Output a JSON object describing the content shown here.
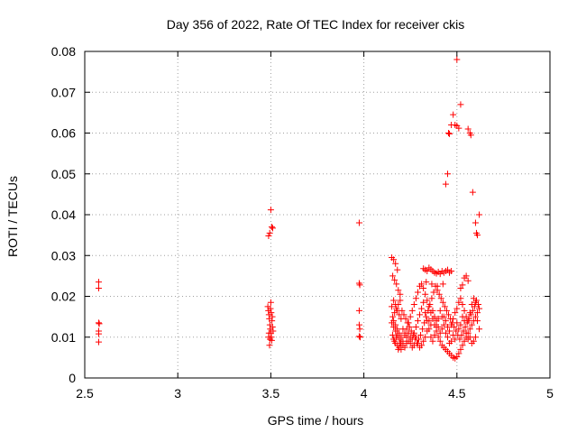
{
  "chart_data": {
    "type": "scatter",
    "title": "Day 356 of 2022, Rate Of TEC Index for receiver ckis",
    "xlabel": "GPS time / hours",
    "ylabel": "ROTI / TECUs",
    "xlim": [
      2.5,
      5
    ],
    "ylim": [
      0,
      0.08
    ],
    "x_ticks": [
      "2.5",
      "3",
      "3.5",
      "4",
      "4.5",
      "5"
    ],
    "y_ticks": [
      "0",
      "0.01",
      "0.02",
      "0.03",
      "0.04",
      "0.05",
      "0.06",
      "0.07",
      "0.08"
    ],
    "grid": true,
    "legend": "none",
    "marker": "plus",
    "marker_color": "#ff0000",
    "points": [
      [
        2.575,
        0.0235
      ],
      [
        2.575,
        0.022
      ],
      [
        2.575,
        0.0135
      ],
      [
        2.578,
        0.0133
      ],
      [
        2.575,
        0.0115
      ],
      [
        2.575,
        0.0108
      ],
      [
        2.575,
        0.0088
      ],
      [
        3.488,
        0.0348
      ],
      [
        3.494,
        0.0355
      ],
      [
        3.5,
        0.0412
      ],
      [
        3.505,
        0.037
      ],
      [
        3.51,
        0.0367
      ],
      [
        3.484,
        0.0175
      ],
      [
        3.487,
        0.0165
      ],
      [
        3.49,
        0.0155
      ],
      [
        3.492,
        0.0145
      ],
      [
        3.495,
        0.013
      ],
      [
        3.497,
        0.012
      ],
      [
        3.5,
        0.011
      ],
      [
        3.503,
        0.01
      ],
      [
        3.505,
        0.0092
      ],
      [
        3.493,
        0.008
      ],
      [
        3.488,
        0.01
      ],
      [
        3.498,
        0.017
      ],
      [
        3.502,
        0.016
      ],
      [
        3.506,
        0.014
      ],
      [
        3.509,
        0.0125
      ],
      [
        3.512,
        0.0115
      ],
      [
        3.5,
        0.0185
      ],
      [
        3.49,
        0.011
      ],
      [
        3.496,
        0.0095
      ],
      [
        3.508,
        0.015
      ],
      [
        3.975,
        0.038
      ],
      [
        3.975,
        0.0232
      ],
      [
        3.978,
        0.0228
      ],
      [
        3.975,
        0.0165
      ],
      [
        3.975,
        0.013
      ],
      [
        3.978,
        0.012
      ],
      [
        3.975,
        0.0102
      ],
      [
        3.98,
        0.01
      ],
      [
        4.15,
        0.0295
      ],
      [
        4.16,
        0.029
      ],
      [
        4.17,
        0.028
      ],
      [
        4.18,
        0.0265
      ],
      [
        4.155,
        0.025
      ],
      [
        4.165,
        0.024
      ],
      [
        4.175,
        0.023
      ],
      [
        4.185,
        0.0215
      ],
      [
        4.195,
        0.0205
      ],
      [
        4.16,
        0.019
      ],
      [
        4.17,
        0.018
      ],
      [
        4.15,
        0.0175
      ],
      [
        4.18,
        0.0165
      ],
      [
        4.19,
        0.0155
      ],
      [
        4.2,
        0.0145
      ],
      [
        4.16,
        0.014
      ],
      [
        4.17,
        0.013
      ],
      [
        4.18,
        0.012
      ],
      [
        4.19,
        0.011
      ],
      [
        4.2,
        0.01
      ],
      [
        4.16,
        0.0095
      ],
      [
        4.17,
        0.0085
      ],
      [
        4.18,
        0.008
      ],
      [
        4.19,
        0.0075
      ],
      [
        4.2,
        0.007
      ],
      [
        4.21,
        0.009
      ],
      [
        4.22,
        0.0105
      ],
      [
        4.23,
        0.012
      ],
      [
        4.24,
        0.0135
      ],
      [
        4.25,
        0.015
      ],
      [
        4.26,
        0.0165
      ],
      [
        4.27,
        0.018
      ],
      [
        4.28,
        0.0195
      ],
      [
        4.29,
        0.021
      ],
      [
        4.3,
        0.0225
      ],
      [
        4.31,
        0.023
      ],
      [
        4.32,
        0.022
      ],
      [
        4.33,
        0.0205
      ],
      [
        4.34,
        0.019
      ],
      [
        4.35,
        0.0175
      ],
      [
        4.36,
        0.016
      ],
      [
        4.37,
        0.0145
      ],
      [
        4.38,
        0.013
      ],
      [
        4.39,
        0.0115
      ],
      [
        4.4,
        0.01
      ],
      [
        4.41,
        0.009
      ],
      [
        4.42,
        0.008
      ],
      [
        4.43,
        0.0075
      ],
      [
        4.44,
        0.007
      ],
      [
        4.45,
        0.0065
      ],
      [
        4.46,
        0.006
      ],
      [
        4.47,
        0.0055
      ],
      [
        4.48,
        0.005
      ],
      [
        4.49,
        0.0048
      ],
      [
        4.5,
        0.0052
      ],
      [
        4.51,
        0.006
      ],
      [
        4.52,
        0.007
      ],
      [
        4.53,
        0.008
      ],
      [
        4.54,
        0.009
      ],
      [
        4.55,
        0.01
      ],
      [
        4.56,
        0.011
      ],
      [
        4.57,
        0.012
      ],
      [
        4.58,
        0.013
      ],
      [
        4.59,
        0.014
      ],
      [
        4.6,
        0.015
      ],
      [
        4.61,
        0.016
      ],
      [
        4.62,
        0.017
      ],
      [
        4.615,
        0.018
      ],
      [
        4.605,
        0.019
      ],
      [
        4.595,
        0.0175
      ],
      [
        4.585,
        0.0165
      ],
      [
        4.575,
        0.0155
      ],
      [
        4.565,
        0.0145
      ],
      [
        4.555,
        0.0135
      ],
      [
        4.545,
        0.0125
      ],
      [
        4.535,
        0.0115
      ],
      [
        4.525,
        0.0105
      ],
      [
        4.515,
        0.0095
      ],
      [
        4.505,
        0.0105
      ],
      [
        4.495,
        0.0115
      ],
      [
        4.485,
        0.0125
      ],
      [
        4.475,
        0.0135
      ],
      [
        4.465,
        0.0145
      ],
      [
        4.455,
        0.0155
      ],
      [
        4.445,
        0.0165
      ],
      [
        4.435,
        0.0175
      ],
      [
        4.425,
        0.0185
      ],
      [
        4.415,
        0.0195
      ],
      [
        4.405,
        0.0205
      ],
      [
        4.395,
        0.0215
      ],
      [
        4.385,
        0.0225
      ],
      [
        4.375,
        0.021
      ],
      [
        4.365,
        0.0195
      ],
      [
        4.355,
        0.018
      ],
      [
        4.345,
        0.0165
      ],
      [
        4.335,
        0.015
      ],
      [
        4.325,
        0.0135
      ],
      [
        4.315,
        0.012
      ],
      [
        4.305,
        0.0105
      ],
      [
        4.295,
        0.0095
      ],
      [
        4.285,
        0.0085
      ],
      [
        4.275,
        0.0095
      ],
      [
        4.265,
        0.0105
      ],
      [
        4.255,
        0.0115
      ],
      [
        4.245,
        0.0125
      ],
      [
        4.235,
        0.0135
      ],
      [
        4.225,
        0.0145
      ],
      [
        4.215,
        0.0155
      ],
      [
        4.205,
        0.0165
      ],
      [
        4.21,
        0.012
      ],
      [
        4.22,
        0.011
      ],
      [
        4.23,
        0.01
      ],
      [
        4.24,
        0.009
      ],
      [
        4.25,
        0.0085
      ],
      [
        4.26,
        0.0095
      ],
      [
        4.27,
        0.011
      ],
      [
        4.28,
        0.0125
      ],
      [
        4.29,
        0.014
      ],
      [
        4.3,
        0.0155
      ],
      [
        4.31,
        0.017
      ],
      [
        4.32,
        0.0185
      ],
      [
        4.33,
        0.016
      ],
      [
        4.34,
        0.014
      ],
      [
        4.35,
        0.012
      ],
      [
        4.36,
        0.01
      ],
      [
        4.37,
        0.009
      ],
      [
        4.38,
        0.0105
      ],
      [
        4.39,
        0.0125
      ],
      [
        4.4,
        0.0145
      ],
      [
        4.41,
        0.0165
      ],
      [
        4.42,
        0.015
      ],
      [
        4.43,
        0.013
      ],
      [
        4.44,
        0.011
      ],
      [
        4.45,
        0.01
      ],
      [
        4.46,
        0.0115
      ],
      [
        4.47,
        0.013
      ],
      [
        4.48,
        0.0145
      ],
      [
        4.49,
        0.016
      ],
      [
        4.5,
        0.017
      ],
      [
        4.51,
        0.0185
      ],
      [
        4.52,
        0.0195
      ],
      [
        4.53,
        0.018
      ],
      [
        4.54,
        0.0165
      ],
      [
        4.55,
        0.015
      ],
      [
        4.56,
        0.014
      ],
      [
        4.57,
        0.016
      ],
      [
        4.58,
        0.018
      ],
      [
        4.59,
        0.0195
      ],
      [
        4.6,
        0.0185
      ],
      [
        4.61,
        0.014
      ],
      [
        4.62,
        0.012
      ],
      [
        4.6,
        0.01
      ],
      [
        4.59,
        0.009
      ],
      [
        4.58,
        0.0085
      ],
      [
        4.57,
        0.01
      ],
      [
        4.56,
        0.0095
      ],
      [
        4.55,
        0.011
      ],
      [
        4.54,
        0.014
      ],
      [
        4.53,
        0.015
      ],
      [
        4.52,
        0.013
      ],
      [
        4.51,
        0.012
      ],
      [
        4.5,
        0.0135
      ],
      [
        4.49,
        0.0095
      ],
      [
        4.48,
        0.0105
      ],
      [
        4.47,
        0.009
      ],
      [
        4.46,
        0.0085
      ],
      [
        4.45,
        0.0125
      ],
      [
        4.44,
        0.014
      ],
      [
        4.43,
        0.015
      ],
      [
        4.42,
        0.012
      ],
      [
        4.41,
        0.011
      ],
      [
        4.4,
        0.0125
      ],
      [
        4.39,
        0.014
      ],
      [
        4.38,
        0.015
      ],
      [
        4.37,
        0.0165
      ],
      [
        4.36,
        0.013
      ],
      [
        4.35,
        0.014
      ],
      [
        4.34,
        0.0115
      ],
      [
        4.33,
        0.01
      ],
      [
        4.32,
        0.009
      ],
      [
        4.31,
        0.008
      ],
      [
        4.3,
        0.0075
      ],
      [
        4.29,
        0.0085
      ],
      [
        4.28,
        0.01
      ],
      [
        4.27,
        0.008
      ],
      [
        4.26,
        0.0075
      ],
      [
        4.25,
        0.01
      ],
      [
        4.24,
        0.011
      ],
      [
        4.23,
        0.0085
      ],
      [
        4.22,
        0.0075
      ],
      [
        4.21,
        0.008
      ],
      [
        4.2,
        0.0085
      ],
      [
        4.19,
        0.0095
      ],
      [
        4.18,
        0.0105
      ],
      [
        4.17,
        0.0115
      ],
      [
        4.16,
        0.0125
      ],
      [
        4.15,
        0.0135
      ],
      [
        4.155,
        0.015
      ],
      [
        4.165,
        0.016
      ],
      [
        4.175,
        0.017
      ],
      [
        4.185,
        0.018
      ],
      [
        4.195,
        0.019
      ],
      [
        4.155,
        0.0105
      ],
      [
        4.165,
        0.009
      ],
      [
        4.175,
        0.01
      ],
      [
        4.185,
        0.007
      ],
      [
        4.195,
        0.0085
      ],
      [
        4.32,
        0.0268
      ],
      [
        4.33,
        0.0265
      ],
      [
        4.34,
        0.0262
      ],
      [
        4.35,
        0.027
      ],
      [
        4.36,
        0.0266
      ],
      [
        4.37,
        0.0262
      ],
      [
        4.38,
        0.0258
      ],
      [
        4.39,
        0.0256
      ],
      [
        4.4,
        0.026
      ],
      [
        4.41,
        0.0255
      ],
      [
        4.42,
        0.0262
      ],
      [
        4.43,
        0.0258
      ],
      [
        4.44,
        0.0262
      ],
      [
        4.45,
        0.0265
      ],
      [
        4.46,
        0.0258
      ],
      [
        4.47,
        0.0262
      ],
      [
        4.335,
        0.0235
      ],
      [
        4.365,
        0.023
      ],
      [
        4.395,
        0.0225
      ],
      [
        4.425,
        0.023
      ],
      [
        4.52,
        0.022
      ],
      [
        4.54,
        0.0245
      ],
      [
        4.55,
        0.025
      ],
      [
        4.56,
        0.0238
      ],
      [
        4.53,
        0.0228
      ],
      [
        4.44,
        0.0475
      ],
      [
        4.45,
        0.05
      ],
      [
        4.455,
        0.06
      ],
      [
        4.46,
        0.0598
      ],
      [
        4.47,
        0.062
      ],
      [
        4.48,
        0.0645
      ],
      [
        4.49,
        0.062
      ],
      [
        4.5,
        0.0618
      ],
      [
        4.51,
        0.0612
      ],
      [
        4.5,
        0.078
      ],
      [
        4.52,
        0.067
      ],
      [
        4.56,
        0.061
      ],
      [
        4.57,
        0.06
      ],
      [
        4.575,
        0.0595
      ],
      [
        4.585,
        0.0455
      ],
      [
        4.6,
        0.038
      ],
      [
        4.605,
        0.0355
      ],
      [
        4.61,
        0.035
      ],
      [
        4.62,
        0.04
      ]
    ]
  }
}
